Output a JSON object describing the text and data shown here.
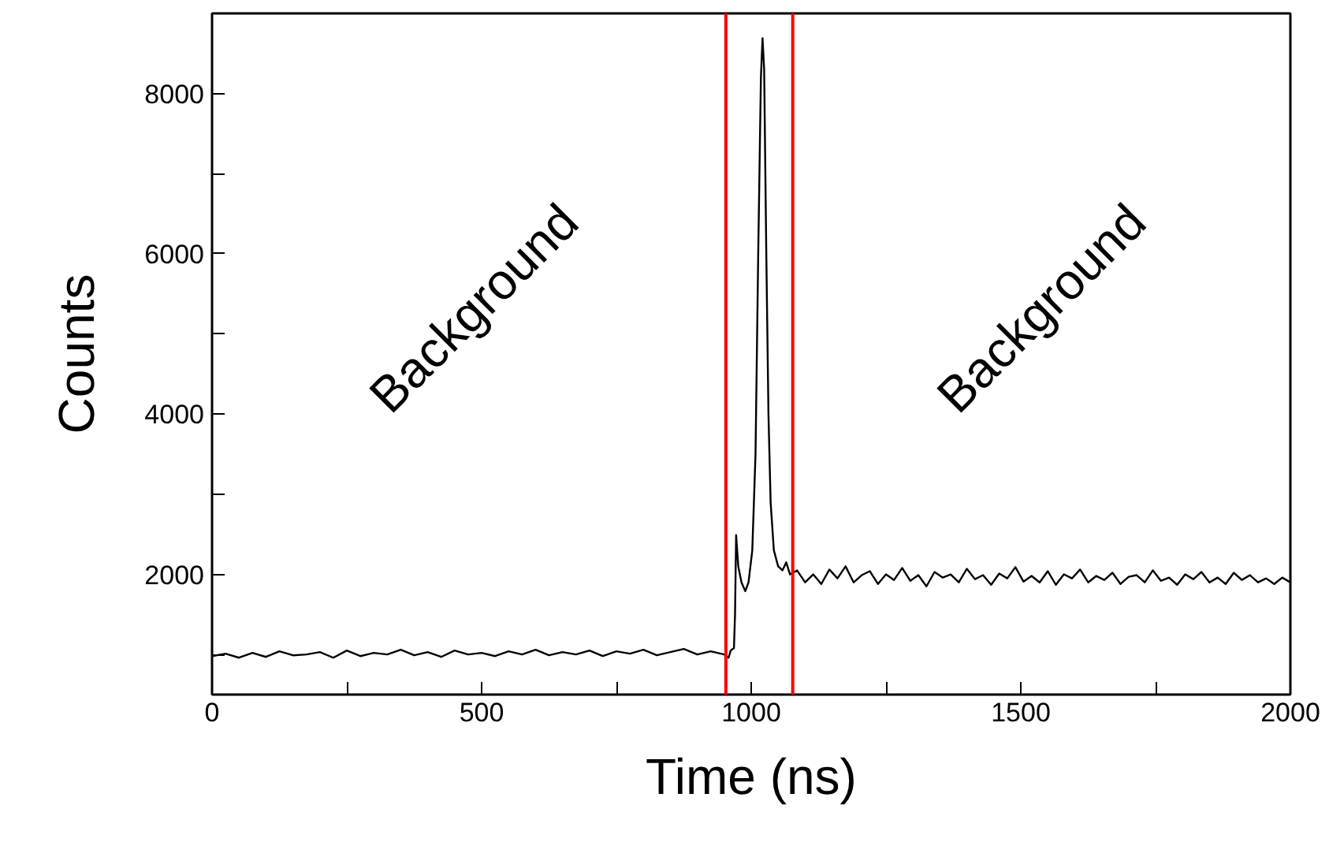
{
  "chart_data": {
    "type": "line",
    "xlabel": "Time (ns)",
    "ylabel": "Counts",
    "xlim": [
      0,
      2000
    ],
    "xticks": [
      0,
      {
        "value": 250,
        "label": null
      },
      500,
      {
        "value": 750,
        "label": null
      },
      1000,
      {
        "value": 1250,
        "label": null
      },
      1500,
      {
        "value": 1750,
        "label": null
      },
      2000
    ],
    "ylim": [
      500,
      9000
    ],
    "yticks": [
      {
        "value": 1000,
        "label": null
      },
      2000,
      {
        "value": 3000,
        "label": null
      },
      4000,
      {
        "value": 5000,
        "label": null
      },
      6000,
      {
        "value": 7000,
        "label": null
      },
      8000
    ],
    "grid": false,
    "marker": "none",
    "line_style": "solid",
    "series": [
      {
        "color": "#000000",
        "x": [
          0,
          25,
          50,
          75,
          100,
          125,
          150,
          175,
          200,
          225,
          250,
          275,
          300,
          325,
          350,
          375,
          400,
          425,
          450,
          475,
          500,
          525,
          550,
          575,
          600,
          625,
          650,
          675,
          700,
          725,
          750,
          775,
          800,
          825,
          850,
          875,
          900,
          925,
          950,
          958,
          962,
          968,
          970,
          972,
          976,
          982,
          989,
          995,
          1002,
          1008,
          1013,
          1018,
          1021,
          1024,
          1028,
          1032,
          1036,
          1042,
          1050,
          1058,
          1065,
          1072,
          1085,
          1100,
          1115,
          1130,
          1145,
          1160,
          1175,
          1190,
          1205,
          1220,
          1235,
          1250,
          1265,
          1280,
          1295,
          1310,
          1325,
          1340,
          1355,
          1370,
          1385,
          1400,
          1415,
          1430,
          1445,
          1460,
          1475,
          1490,
          1505,
          1520,
          1535,
          1550,
          1565,
          1580,
          1595,
          1610,
          1625,
          1640,
          1655,
          1670,
          1685,
          1700,
          1715,
          1730,
          1745,
          1760,
          1775,
          1790,
          1805,
          1820,
          1835,
          1850,
          1865,
          1880,
          1895,
          1910,
          1925,
          1940,
          1955,
          1970,
          1985,
          2000
        ],
        "values": [
          980,
          1010,
          960,
          1020,
          970,
          1040,
          990,
          1000,
          1030,
          960,
          1050,
          980,
          1020,
          1000,
          1060,
          990,
          1030,
          970,
          1050,
          1000,
          1020,
          980,
          1040,
          1000,
          1060,
          990,
          1030,
          1000,
          1050,
          980,
          1040,
          1010,
          1060,
          990,
          1030,
          1070,
          1000,
          1040,
          1000,
          960,
          1050,
          1080,
          1500,
          2490,
          2100,
          1900,
          1790,
          1900,
          2300,
          3500,
          6000,
          8200,
          8690,
          8300,
          6000,
          4000,
          2900,
          2300,
          2100,
          2050,
          2150,
          2000,
          2050,
          1900,
          2000,
          1880,
          2060,
          1950,
          2100,
          1900,
          1990,
          2040,
          1880,
          2000,
          1930,
          2080,
          1920,
          1990,
          1850,
          2030,
          1960,
          2000,
          1900,
          2070,
          1940,
          1990,
          1870,
          2010,
          1950,
          2090,
          1910,
          1980,
          1900,
          2040,
          1870,
          2000,
          1950,
          2060,
          1900,
          1980,
          1930,
          2020,
          1880,
          1970,
          1990,
          1900,
          2050,
          1920,
          1960,
          1870,
          2000,
          1940,
          2030,
          1900,
          1960,
          1880,
          2020,
          1930,
          1990,
          1900,
          1950,
          1880,
          1960,
          1900
        ]
      }
    ],
    "ref_lines": [
      {
        "axis": "x",
        "value": 953,
        "color": "#ff0000"
      },
      {
        "axis": "x",
        "value": 1077,
        "color": "#ff0000"
      }
    ],
    "annotations": [
      "Background",
      "Background"
    ]
  }
}
